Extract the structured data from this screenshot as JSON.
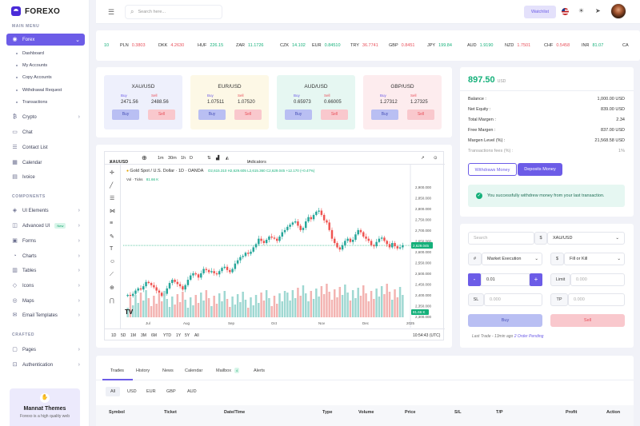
{
  "brand": {
    "name": "FOREXO"
  },
  "sidebar": {
    "main_menu_title": "MAIN MENU",
    "components_title": "COMPONENTS",
    "crafted_title": "CRAFTED",
    "forex_label": "Forex",
    "sub_items": [
      "Dashboard",
      "My Accounts",
      "Copy Accounts",
      "Withdrawal Request",
      "Transactions"
    ],
    "main_items": [
      "Crypto",
      "Chat",
      "Contact List",
      "Calendar",
      "Ivoice"
    ],
    "component_items": [
      "UI Elements",
      "Advanced UI",
      "Forms",
      "Charts",
      "Tables",
      "Icons",
      "Maps",
      "Email Templates"
    ],
    "new_badge": "New",
    "crafted_items": [
      "Pages",
      "Authentication"
    ],
    "promo_title": "Mannat Themes",
    "promo_sub": "Forexo is a high quality web"
  },
  "topbar": {
    "search_placeholder": "Search here...",
    "watchlist_label": "Watchlist"
  },
  "ticker": [
    {
      "sym": "",
      "val": "10",
      "dir": "up"
    },
    {
      "sym": "PLN",
      "val": "0.3803",
      "dir": "dn"
    },
    {
      "sym": "DKK",
      "val": "4.2630",
      "dir": "dn"
    },
    {
      "sym": "HUF",
      "val": "226.15",
      "dir": "up"
    },
    {
      "sym": "ZAR",
      "val": "11.1726",
      "dir": "up"
    },
    {
      "sym": "CZK",
      "val": "14.102",
      "dir": "up"
    },
    {
      "sym": "EUR",
      "val": "0.84510",
      "dir": "up"
    },
    {
      "sym": "TRY",
      "val": "36.7741",
      "dir": "dn"
    },
    {
      "sym": "GBP",
      "val": "0.8451",
      "dir": "dn"
    },
    {
      "sym": "JPY",
      "val": "199.84",
      "dir": "up"
    },
    {
      "sym": "AUD",
      "val": "1.9190",
      "dir": "up"
    },
    {
      "sym": "NZD",
      "val": "1.7501",
      "dir": "dn"
    },
    {
      "sym": "CHF",
      "val": "0.5458",
      "dir": "dn"
    },
    {
      "sym": "INR",
      "val": "81.07",
      "dir": "up"
    },
    {
      "sym": "CA",
      "val": "",
      "dir": "up"
    }
  ],
  "rates": [
    {
      "pair": "XAU/USD",
      "buy_label": "Buy",
      "sell_label": "Sell",
      "buy": "2471.56",
      "sell": "2488.56",
      "buy_btn": "Buy",
      "sell_btn": "Sell",
      "bg": "#eef0fc"
    },
    {
      "pair": "EUR/USD",
      "buy_label": "Buy",
      "sell_label": "Sell",
      "buy": "1.07511",
      "sell": "1.07520",
      "buy_btn": "Buy",
      "sell_btn": "Sell",
      "bg": "#fdf8e6"
    },
    {
      "pair": "AUD/USD",
      "buy_label": "Buy",
      "sell_label": "Sell",
      "buy": "0.65973",
      "sell": "0.66005",
      "buy_btn": "Buy",
      "sell_btn": "Sell",
      "bg": "#e6f7f2"
    },
    {
      "pair": "GBP/USD",
      "buy_label": "Buy",
      "sell_label": "Sell",
      "buy": "1.27312",
      "sell": "1.27325",
      "buy_btn": "Buy",
      "sell_btn": "Sell",
      "bg": "#fdecee"
    }
  ],
  "chart": {
    "symbol": "XAUUSD",
    "intervals": [
      "1m",
      "30m",
      "1h",
      "D"
    ],
    "indicators_label": "Indicators",
    "title": "Gold Spot / U.S. Dollar · 1D · OANDA",
    "ohlc": "O2,615.310 H2,629.605 L2,615.360 C2,629.045 +12.170 (+0.47%)",
    "vol_label": "Vol · Ticks",
    "vol_value": "81.66 K",
    "y_ticks": [
      "2,900.000",
      "2,850.000",
      "2,800.000",
      "2,750.000",
      "2,700.000",
      "2,650.000",
      "2,600.000",
      "2,550.000",
      "2,500.000",
      "2,450.000",
      "2,400.000",
      "2,350.000",
      "2,300.000"
    ],
    "last_price": "2,629.045",
    "x_ticks": [
      "Jul",
      "Aug",
      "Sep",
      "Oct",
      "Nov",
      "Dec",
      "2025"
    ],
    "ranges": [
      "1D",
      "5D",
      "1M",
      "3M",
      "6M",
      "YTD",
      "1Y",
      "5Y",
      "All"
    ],
    "clock": "10:54:43 (UTC)",
    "vol_badge": "81.66 K"
  },
  "chart_data": {
    "type": "candlestick",
    "title": "Gold Spot / U.S. Dollar · 1D · OANDA",
    "ylim": [
      2300,
      2925
    ],
    "close_series": [
      2400,
      2395,
      2405,
      2420,
      2430,
      2425,
      2440,
      2460,
      2455,
      2445,
      2435,
      2420,
      2410,
      2395,
      2405,
      2430,
      2455,
      2470,
      2460,
      2450,
      2440,
      2425,
      2445,
      2470,
      2490,
      2500,
      2495,
      2480,
      2500,
      2520,
      2515,
      2505,
      2510,
      2500,
      2495,
      2510,
      2525,
      2530,
      2515,
      2505,
      2520,
      2545,
      2560,
      2575,
      2580,
      2595,
      2590,
      2600,
      2620,
      2635,
      2660,
      2650,
      2640,
      2655,
      2670,
      2665,
      2660,
      2650,
      2670,
      2690,
      2700,
      2715,
      2725,
      2735,
      2740,
      2720,
      2700,
      2710,
      2740,
      2760,
      2750,
      2770,
      2785,
      2790,
      2770,
      2745,
      2735,
      2700,
      2660,
      2640,
      2620,
      2610,
      2630,
      2650,
      2660,
      2645,
      2655,
      2680,
      2700,
      2690,
      2670,
      2660,
      2650,
      2630,
      2625,
      2645,
      2660,
      2665,
      2650,
      2635,
      2620,
      2640,
      2625,
      2615,
      2620,
      2629
    ],
    "last": 2629.045
  },
  "balance": {
    "amount": "897.50",
    "currency": "USD",
    "rows": [
      {
        "label": "Balance :",
        "value": "1,000.00 USD"
      },
      {
        "label": "Net Equity :",
        "value": "839.00 USD"
      },
      {
        "label": "Total Margen :",
        "value": "2.34"
      },
      {
        "label": "Free Margen :",
        "value": "837.00 USD"
      },
      {
        "label": "Margen Level (%) :",
        "value": "21,568.58 USD"
      },
      {
        "label": "Transactions fees (%) :",
        "value": "1%"
      }
    ],
    "withdraw_label": "Withdraws Money",
    "deposit_label": "Deposits Money",
    "alert": "You successfully withdrew money from your last transaction."
  },
  "order": {
    "search_placeholder": "Search",
    "currency_symbol": "$",
    "pair": "XAU/USD",
    "hash_symbol": "#",
    "order_type": "Market Execution",
    "fill_type": "Fill or Kill",
    "qty": "0.01",
    "limit_label": "Limit",
    "limit_value": "0.000",
    "sl_label": "SL",
    "sl_value": "0.000",
    "tp_label": "TP",
    "tp_value": "0.000",
    "buy_label": "Buy",
    "sell_label": "Sell",
    "last_trade": "Last Trade - 13min ago",
    "pending": "2 Order Pending"
  },
  "trades": {
    "tabs": [
      "Trades",
      "History",
      "News",
      "Calendar",
      "Mailbox",
      "Alerts"
    ],
    "mailbox_count": "4",
    "currency_tabs": [
      "All",
      "USD",
      "EUR",
      "GBP",
      "AUD"
    ],
    "columns": [
      "Symbol",
      "Ticket",
      "Date/Time",
      "Type",
      "Volume",
      "Price",
      "S/L",
      "T/P",
      "Profit",
      "Action"
    ]
  }
}
